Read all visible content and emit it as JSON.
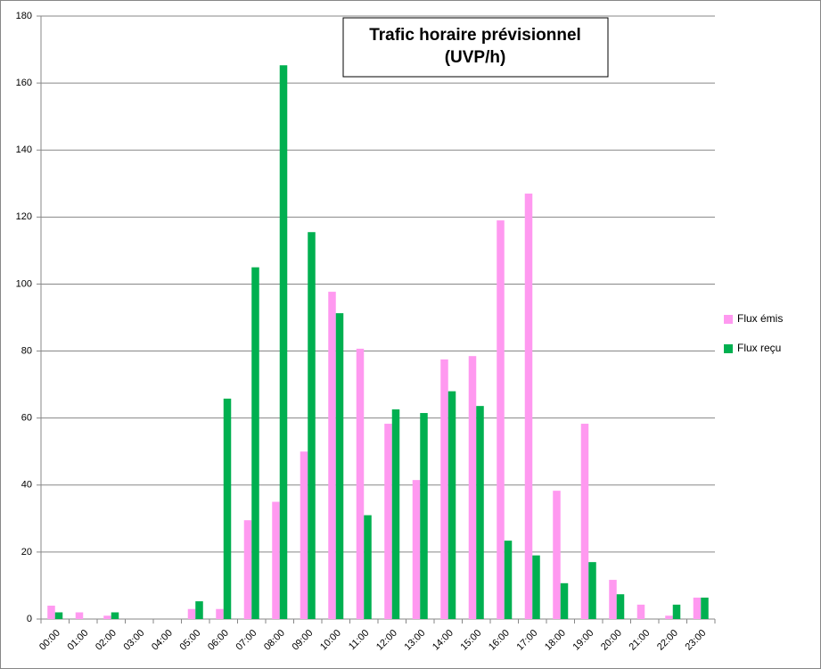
{
  "chart_data": {
    "type": "bar",
    "title": [
      "Trafic horaire prévisionnel",
      "(UVP/h)"
    ],
    "categories": [
      "00:00",
      "01:00",
      "02:00",
      "03:00",
      "04:00",
      "05:00",
      "06:00",
      "07:00",
      "08:00",
      "09:00",
      "10:00",
      "11:00",
      "12:00",
      "13:00",
      "14:00",
      "15:00",
      "16:00",
      "17:00",
      "18:00",
      "19:00",
      "20:00",
      "21:00",
      "22:00",
      "23:00"
    ],
    "series": [
      {
        "name": "Flux émis",
        "color": "#ff99f0",
        "values": [
          4,
          2,
          1,
          0,
          0,
          3,
          3,
          29.5,
          35,
          50,
          97.7,
          80.7,
          58.3,
          41.5,
          77.5,
          78.5,
          119,
          127,
          38.3,
          58.3,
          11.7,
          4.3,
          1,
          6.4
        ]
      },
      {
        "name": "Flux reçu",
        "color": "#00b050",
        "values": [
          2,
          0,
          2,
          0,
          0,
          5.3,
          65.8,
          105,
          165.3,
          115.5,
          91.3,
          31,
          62.6,
          61.5,
          68,
          63.6,
          23.4,
          19,
          10.7,
          17,
          7.4,
          0,
          4.3,
          6.4
        ]
      }
    ],
    "ylim": [
      0,
      180
    ],
    "yticks": [
      0,
      20,
      40,
      60,
      80,
      100,
      120,
      140,
      160,
      180
    ],
    "grid": true,
    "legend": "right"
  }
}
